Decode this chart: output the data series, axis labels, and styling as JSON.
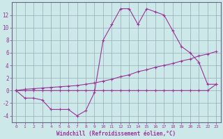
{
  "xlabel": "Windchill (Refroidissement éolien,°C)",
  "background_color": "#cce8e8",
  "line_color": "#993399",
  "grid_color": "#99aabb",
  "x_values": [
    0,
    1,
    2,
    3,
    4,
    5,
    6,
    7,
    8,
    9,
    10,
    11,
    12,
    13,
    14,
    15,
    16,
    17,
    18,
    19,
    20,
    21,
    22,
    23
  ],
  "line_main": [
    0,
    -1.2,
    -1.2,
    -1.5,
    -3,
    -3,
    -3,
    -4,
    -3.2,
    -0.3,
    8,
    10.5,
    13,
    13,
    10.5,
    13,
    12.5,
    12,
    9.5,
    7,
    6,
    4.5,
    1,
    1
  ],
  "line_flat": [
    0,
    0,
    0,
    0,
    0,
    0,
    0,
    0,
    0,
    0,
    0,
    0,
    0,
    0,
    0,
    0,
    0,
    0,
    0,
    0,
    0,
    0,
    0,
    1
  ],
  "line_diag": [
    0,
    0.2,
    0.3,
    0.4,
    0.5,
    0.6,
    0.7,
    0.8,
    1.0,
    1.2,
    1.5,
    1.8,
    2.2,
    2.5,
    3.0,
    3.3,
    3.7,
    4.0,
    4.3,
    4.7,
    5.0,
    5.5,
    5.8,
    6.2
  ],
  "xlim": [
    -0.5,
    23.5
  ],
  "ylim": [
    -5,
    14
  ],
  "yticks": [
    -4,
    -2,
    0,
    2,
    4,
    6,
    8,
    10,
    12
  ],
  "xticks": [
    0,
    1,
    2,
    3,
    4,
    5,
    6,
    7,
    8,
    9,
    10,
    11,
    12,
    13,
    14,
    15,
    16,
    17,
    18,
    19,
    20,
    21,
    22,
    23
  ]
}
